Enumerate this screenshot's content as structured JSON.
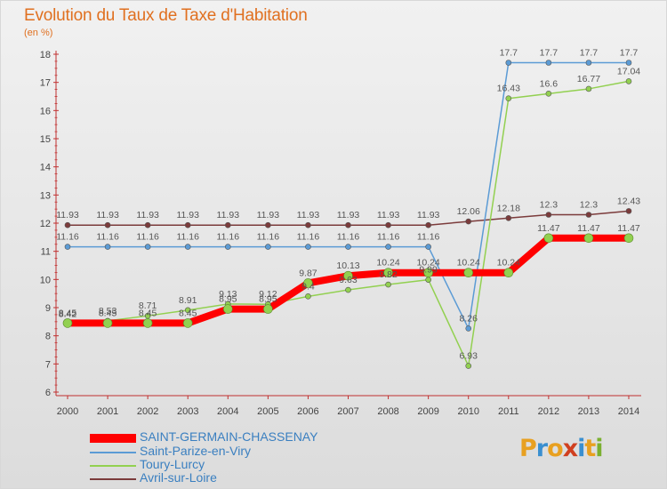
{
  "title": "Evolution du Taux de Taxe d'Habitation",
  "subtitle": "(en %)",
  "logo": {
    "letters": [
      "P",
      "r",
      "o",
      "x",
      "i",
      "t",
      "i"
    ],
    "colors": [
      "#e8a020",
      "#3a8fd0",
      "#e8a020",
      "#d04020",
      "#3a8fd0",
      "#e8a020",
      "#7ab030"
    ]
  },
  "chart_data": {
    "type": "line",
    "x": [
      "2000",
      "2001",
      "2002",
      "2003",
      "2004",
      "2005",
      "2006",
      "2007",
      "2008",
      "2009",
      "2010",
      "2011",
      "2012",
      "2013",
      "2014"
    ],
    "ylim": [
      6,
      18
    ],
    "yticks": [
      "6",
      "7",
      "8",
      "9",
      "10",
      "11",
      "12",
      "13",
      "14",
      "15",
      "16",
      "17",
      "18"
    ],
    "grid": false,
    "legend_position": "bottom",
    "series": [
      {
        "name": "SAINT-GERMAIN-CHASSENAY",
        "color": "#ff0000",
        "values": [
          8.45,
          8.45,
          8.45,
          8.45,
          8.95,
          8.95,
          9.87,
          10.13,
          10.24,
          10.24,
          10.24,
          10.24,
          11.47,
          11.47,
          11.47
        ],
        "labels": [
          "8.45",
          "8.45",
          "8.45",
          "8.45",
          "8.95",
          "8.95",
          "9.87",
          "10.13",
          "10.24",
          "10.24",
          "10.24",
          "10.24",
          "11.47",
          "11.47",
          "11.47"
        ]
      },
      {
        "name": "Saint-Parize-en-Viry",
        "color": "#5b9bd5",
        "values": [
          11.16,
          11.16,
          11.16,
          11.16,
          11.16,
          11.16,
          11.16,
          11.16,
          11.16,
          11.16,
          8.26,
          17.7,
          17.7,
          17.7,
          17.7
        ],
        "labels": [
          "11.16",
          "11.16",
          "11.16",
          "11.16",
          "11.16",
          "11.16",
          "11.16",
          "11.16",
          "11.16",
          "11.16",
          "8.26",
          "17.7",
          "17.7",
          "17.7",
          "17.7"
        ]
      },
      {
        "name": "Toury-Lurcy",
        "color": "#92d050",
        "values": [
          8.42,
          8.53,
          8.71,
          8.91,
          9.13,
          9.12,
          9.4,
          9.63,
          9.82,
          9.99,
          6.93,
          16.43,
          16.6,
          16.77,
          17.04
        ],
        "labels": [
          "8.42",
          "8.53",
          "8.71",
          "8.91",
          "9.13",
          "9.12",
          "9.4",
          "9.63",
          "9.82",
          "9.99",
          "6.93",
          "16.43",
          "16.6",
          "16.77",
          "17.04"
        ]
      },
      {
        "name": "Avril-sur-Loire",
        "color": "#7b3b3b",
        "values": [
          11.93,
          11.93,
          11.93,
          11.93,
          11.93,
          11.93,
          11.93,
          11.93,
          11.93,
          11.93,
          12.06,
          12.18,
          12.3,
          12.3,
          12.43
        ],
        "labels": [
          "11.93",
          "11.93",
          "11.93",
          "11.93",
          "11.93",
          "11.93",
          "11.93",
          "11.93",
          "11.93",
          "11.93",
          "12.06",
          "12.18",
          "12.3",
          "12.3",
          "12.43"
        ]
      }
    ]
  }
}
